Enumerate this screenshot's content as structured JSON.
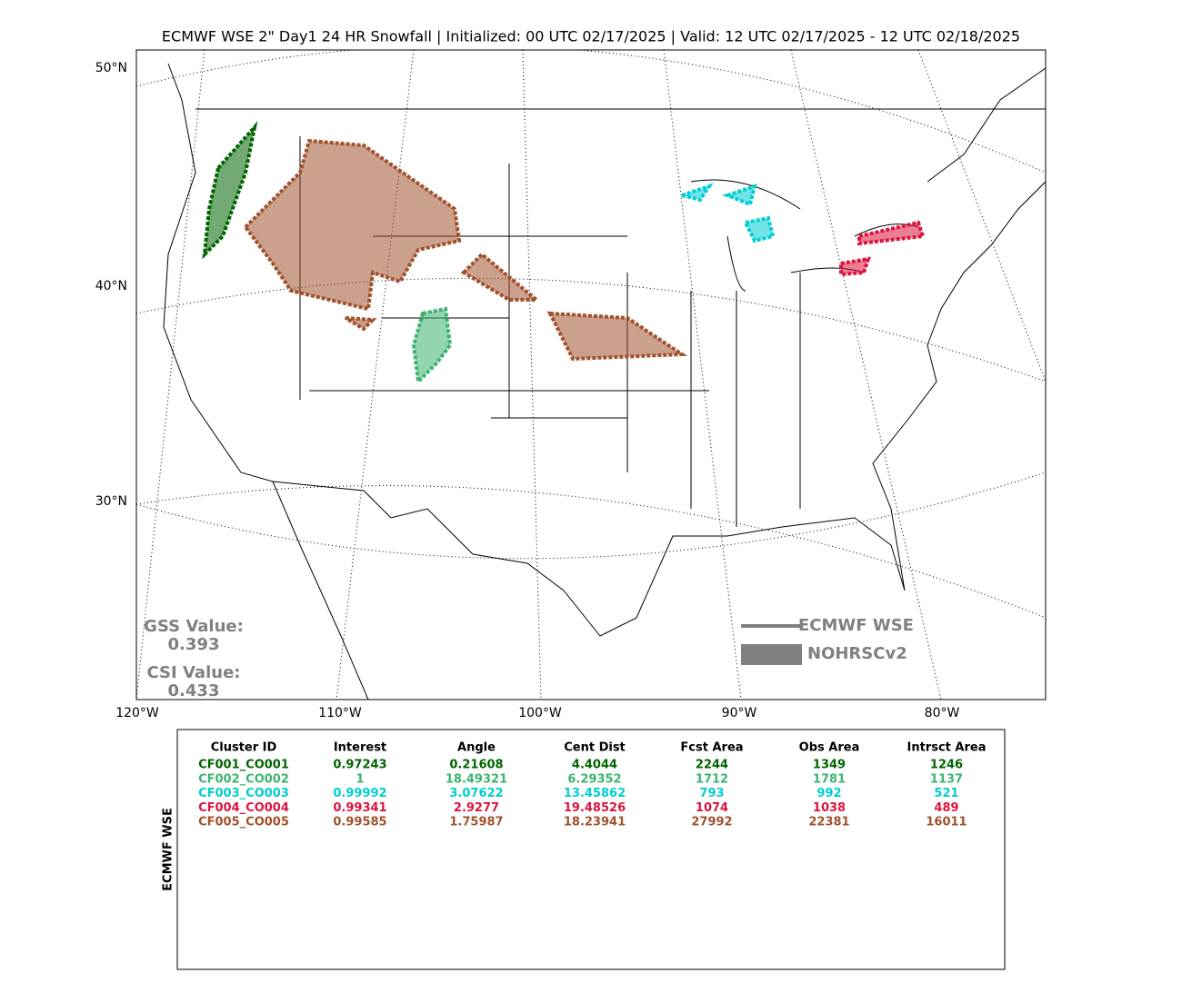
{
  "title": "ECMWF WSE 2\" Day1 24 HR Snowfall | Initialized: 00 UTC 02/17/2025 | Valid: 12 UTC 02/17/2025 - 12 UTC 02/18/2025",
  "map": {
    "lat_labels": [
      "50°N",
      "40°N",
      "30°N"
    ],
    "lon_labels": [
      "120°W",
      "110°W",
      "100°W",
      "90°W",
      "80°W"
    ],
    "legend": [
      "ECMWF WSE",
      "NOHRSCv2"
    ],
    "scores": {
      "gss_label": "GSS Value:",
      "gss": "0.393",
      "csi_label": "CSI Value:",
      "csi": "0.433"
    }
  },
  "table": {
    "side_label": "ECMWF WSE",
    "columns": [
      "Cluster ID",
      "Interest",
      "Angle",
      "Cent Dist",
      "Fcst Area",
      "Obs Area",
      "Intrsct Area"
    ],
    "row_colors": [
      "#006400",
      "#3cb371",
      "#00ced1",
      "#dc143c",
      "#a0522d"
    ],
    "rows": [
      [
        "CF001_CO001",
        "0.97243",
        "0.21608",
        "4.4044",
        "2244",
        "1349",
        "1246"
      ],
      [
        "CF002_CO002",
        "1",
        "18.49321",
        "6.29352",
        "1712",
        "1781",
        "1137"
      ],
      [
        "CF003_CO003",
        "0.99992",
        "3.07622",
        "13.45862",
        "793",
        "992",
        "521"
      ],
      [
        "CF004_CO004",
        "0.99341",
        "2.9277",
        "19.48526",
        "1074",
        "1038",
        "489"
      ],
      [
        "CF005_CO005",
        "0.99585",
        "1.75987",
        "18.23941",
        "27992",
        "22381",
        "16011"
      ]
    ]
  }
}
